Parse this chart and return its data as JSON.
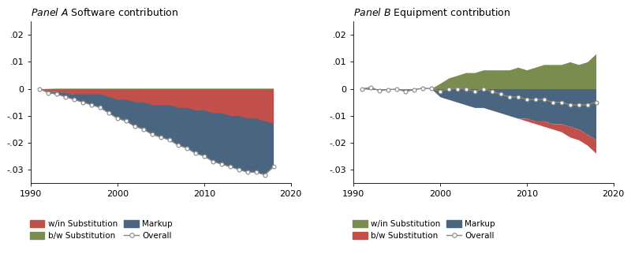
{
  "panel_a_title": "Panel A  Software contribution",
  "panel_b_title": "Panel B  Equipment contribution",
  "years": [
    1991,
    1992,
    1993,
    1994,
    1995,
    1996,
    1997,
    1998,
    1999,
    2000,
    2001,
    2002,
    2003,
    2004,
    2005,
    2006,
    2007,
    2008,
    2009,
    2010,
    2011,
    2012,
    2013,
    2014,
    2015,
    2016,
    2017,
    2018
  ],
  "panel_a": {
    "within_sub": [
      0.0,
      -0.001,
      -0.001,
      -0.0015,
      -0.002,
      -0.002,
      -0.002,
      -0.002,
      -0.003,
      -0.004,
      -0.004,
      -0.005,
      -0.005,
      -0.006,
      -0.006,
      -0.006,
      -0.007,
      -0.007,
      -0.008,
      -0.008,
      -0.009,
      -0.009,
      -0.01,
      -0.01,
      -0.011,
      -0.011,
      -0.012,
      -0.013
    ],
    "bw_sub": [
      0.0,
      0.0001,
      0.0002,
      0.0002,
      0.0002,
      0.0002,
      0.0002,
      0.0002,
      0.0002,
      0.0002,
      0.0002,
      0.0002,
      0.0002,
      0.0002,
      0.0002,
      0.0002,
      0.0002,
      0.0002,
      0.0002,
      0.0002,
      0.0002,
      0.0002,
      0.0002,
      0.0002,
      0.0002,
      0.0002,
      0.0002,
      0.0002
    ],
    "markup": [
      0.0,
      -0.0005,
      -0.001,
      -0.0015,
      -0.002,
      -0.003,
      -0.004,
      -0.005,
      -0.006,
      -0.007,
      -0.008,
      -0.009,
      -0.01,
      -0.011,
      -0.012,
      -0.013,
      -0.014,
      -0.015,
      -0.016,
      -0.017,
      -0.018,
      -0.019,
      -0.019,
      -0.02,
      -0.02,
      -0.02,
      -0.02,
      -0.016
    ],
    "overall": [
      0.0,
      -0.0015,
      -0.002,
      -0.003,
      -0.004,
      -0.005,
      -0.006,
      -0.007,
      -0.009,
      -0.011,
      -0.012,
      -0.014,
      -0.015,
      -0.017,
      -0.018,
      -0.019,
      -0.021,
      -0.022,
      -0.024,
      -0.025,
      -0.027,
      -0.028,
      -0.029,
      -0.03,
      -0.031,
      -0.031,
      -0.032,
      -0.029
    ]
  },
  "panel_b": {
    "within_sub": [
      0.0,
      0.0008,
      -0.0005,
      -0.0002,
      0.0,
      -0.001,
      -0.0003,
      0.0002,
      0.0001,
      0.002,
      0.004,
      0.005,
      0.006,
      0.006,
      0.007,
      0.007,
      0.007,
      0.007,
      0.008,
      0.007,
      0.008,
      0.009,
      0.009,
      0.009,
      0.01,
      0.009,
      0.01,
      0.013
    ],
    "bw_sub": [
      0.0,
      0.0,
      0.0,
      0.0,
      0.0,
      0.0,
      0.0,
      0.0,
      0.0,
      0.0,
      0.0,
      0.0,
      0.0,
      0.0,
      0.0,
      0.0,
      0.0,
      0.0,
      0.0,
      -0.001,
      -0.001,
      -0.002,
      -0.002,
      -0.003,
      -0.004,
      -0.004,
      -0.004,
      -0.005
    ],
    "markup": [
      0.0,
      -0.0003,
      -0.0003,
      -0.0001,
      -0.0001,
      -0.0001,
      0.0,
      0.0,
      0.0,
      -0.003,
      -0.004,
      -0.005,
      -0.006,
      -0.007,
      -0.007,
      -0.008,
      -0.009,
      -0.01,
      -0.011,
      -0.011,
      -0.012,
      -0.012,
      -0.013,
      -0.013,
      -0.014,
      -0.015,
      -0.017,
      -0.019
    ],
    "overall": [
      0.0,
      0.0005,
      -0.0008,
      -0.0003,
      -0.0001,
      -0.001,
      -0.0003,
      0.0002,
      0.0001,
      -0.001,
      0.0,
      0.0,
      0.0,
      -0.001,
      0.0,
      -0.001,
      -0.002,
      -0.003,
      -0.003,
      -0.004,
      -0.004,
      -0.004,
      -0.005,
      -0.005,
      -0.006,
      -0.006,
      -0.006,
      -0.005
    ]
  },
  "color_within_a": "#c1504a",
  "color_bw_a": "#7a8c4e",
  "color_markup": "#4a6580",
  "color_within_b": "#7a8c4e",
  "color_bw_b": "#c1504a",
  "color_overall": "#888888",
  "ylim": [
    -0.035,
    0.025
  ],
  "yticks": [
    -0.03,
    -0.02,
    -0.01,
    0.0,
    0.01,
    0.02
  ],
  "ytick_labels": [
    "-.03",
    "-.02",
    "-.01",
    "0",
    ".01",
    ".02"
  ],
  "xlim": [
    1990,
    2020
  ],
  "xticks": [
    1990,
    2000,
    2010,
    2020
  ]
}
